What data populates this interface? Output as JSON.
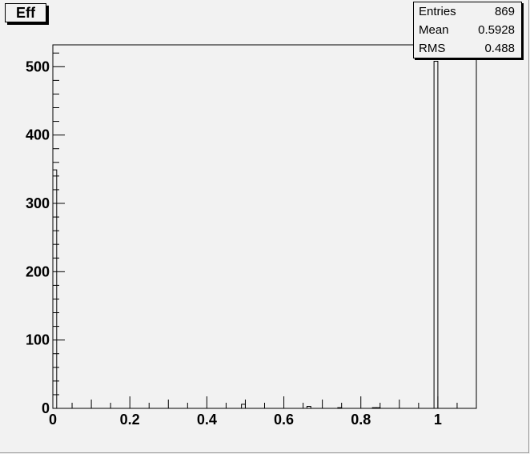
{
  "title": "Eff",
  "stats": {
    "rows": [
      {
        "label": "Entries",
        "value": "869"
      },
      {
        "label": "Mean",
        "value": "0.5928"
      },
      {
        "label": "RMS",
        "value": "0.488"
      }
    ]
  },
  "chart_data": {
    "type": "bar",
    "title": "Eff",
    "xlabel": "",
    "ylabel": "",
    "xlim": [
      0,
      1.1
    ],
    "ylim": [
      0,
      532
    ],
    "bin_width": 0.01,
    "x_ticks": [
      "0",
      "0.2",
      "0.4",
      "0.6",
      "0.8",
      "1"
    ],
    "y_ticks": [
      "0",
      "100",
      "200",
      "300",
      "400",
      "500"
    ],
    "bins": [
      {
        "x_low": 0.0,
        "count": 349
      },
      {
        "x_low": 0.49,
        "count": 6
      },
      {
        "x_low": 0.66,
        "count": 3
      },
      {
        "x_low": 0.74,
        "count": 1
      },
      {
        "x_low": 0.83,
        "count": 1
      },
      {
        "x_low": 0.84,
        "count": 1
      },
      {
        "x_low": 0.99,
        "count": 508
      }
    ],
    "grid": false,
    "legend": "none",
    "colors": {
      "background": "#f2f2f2",
      "line": "#000000"
    }
  }
}
